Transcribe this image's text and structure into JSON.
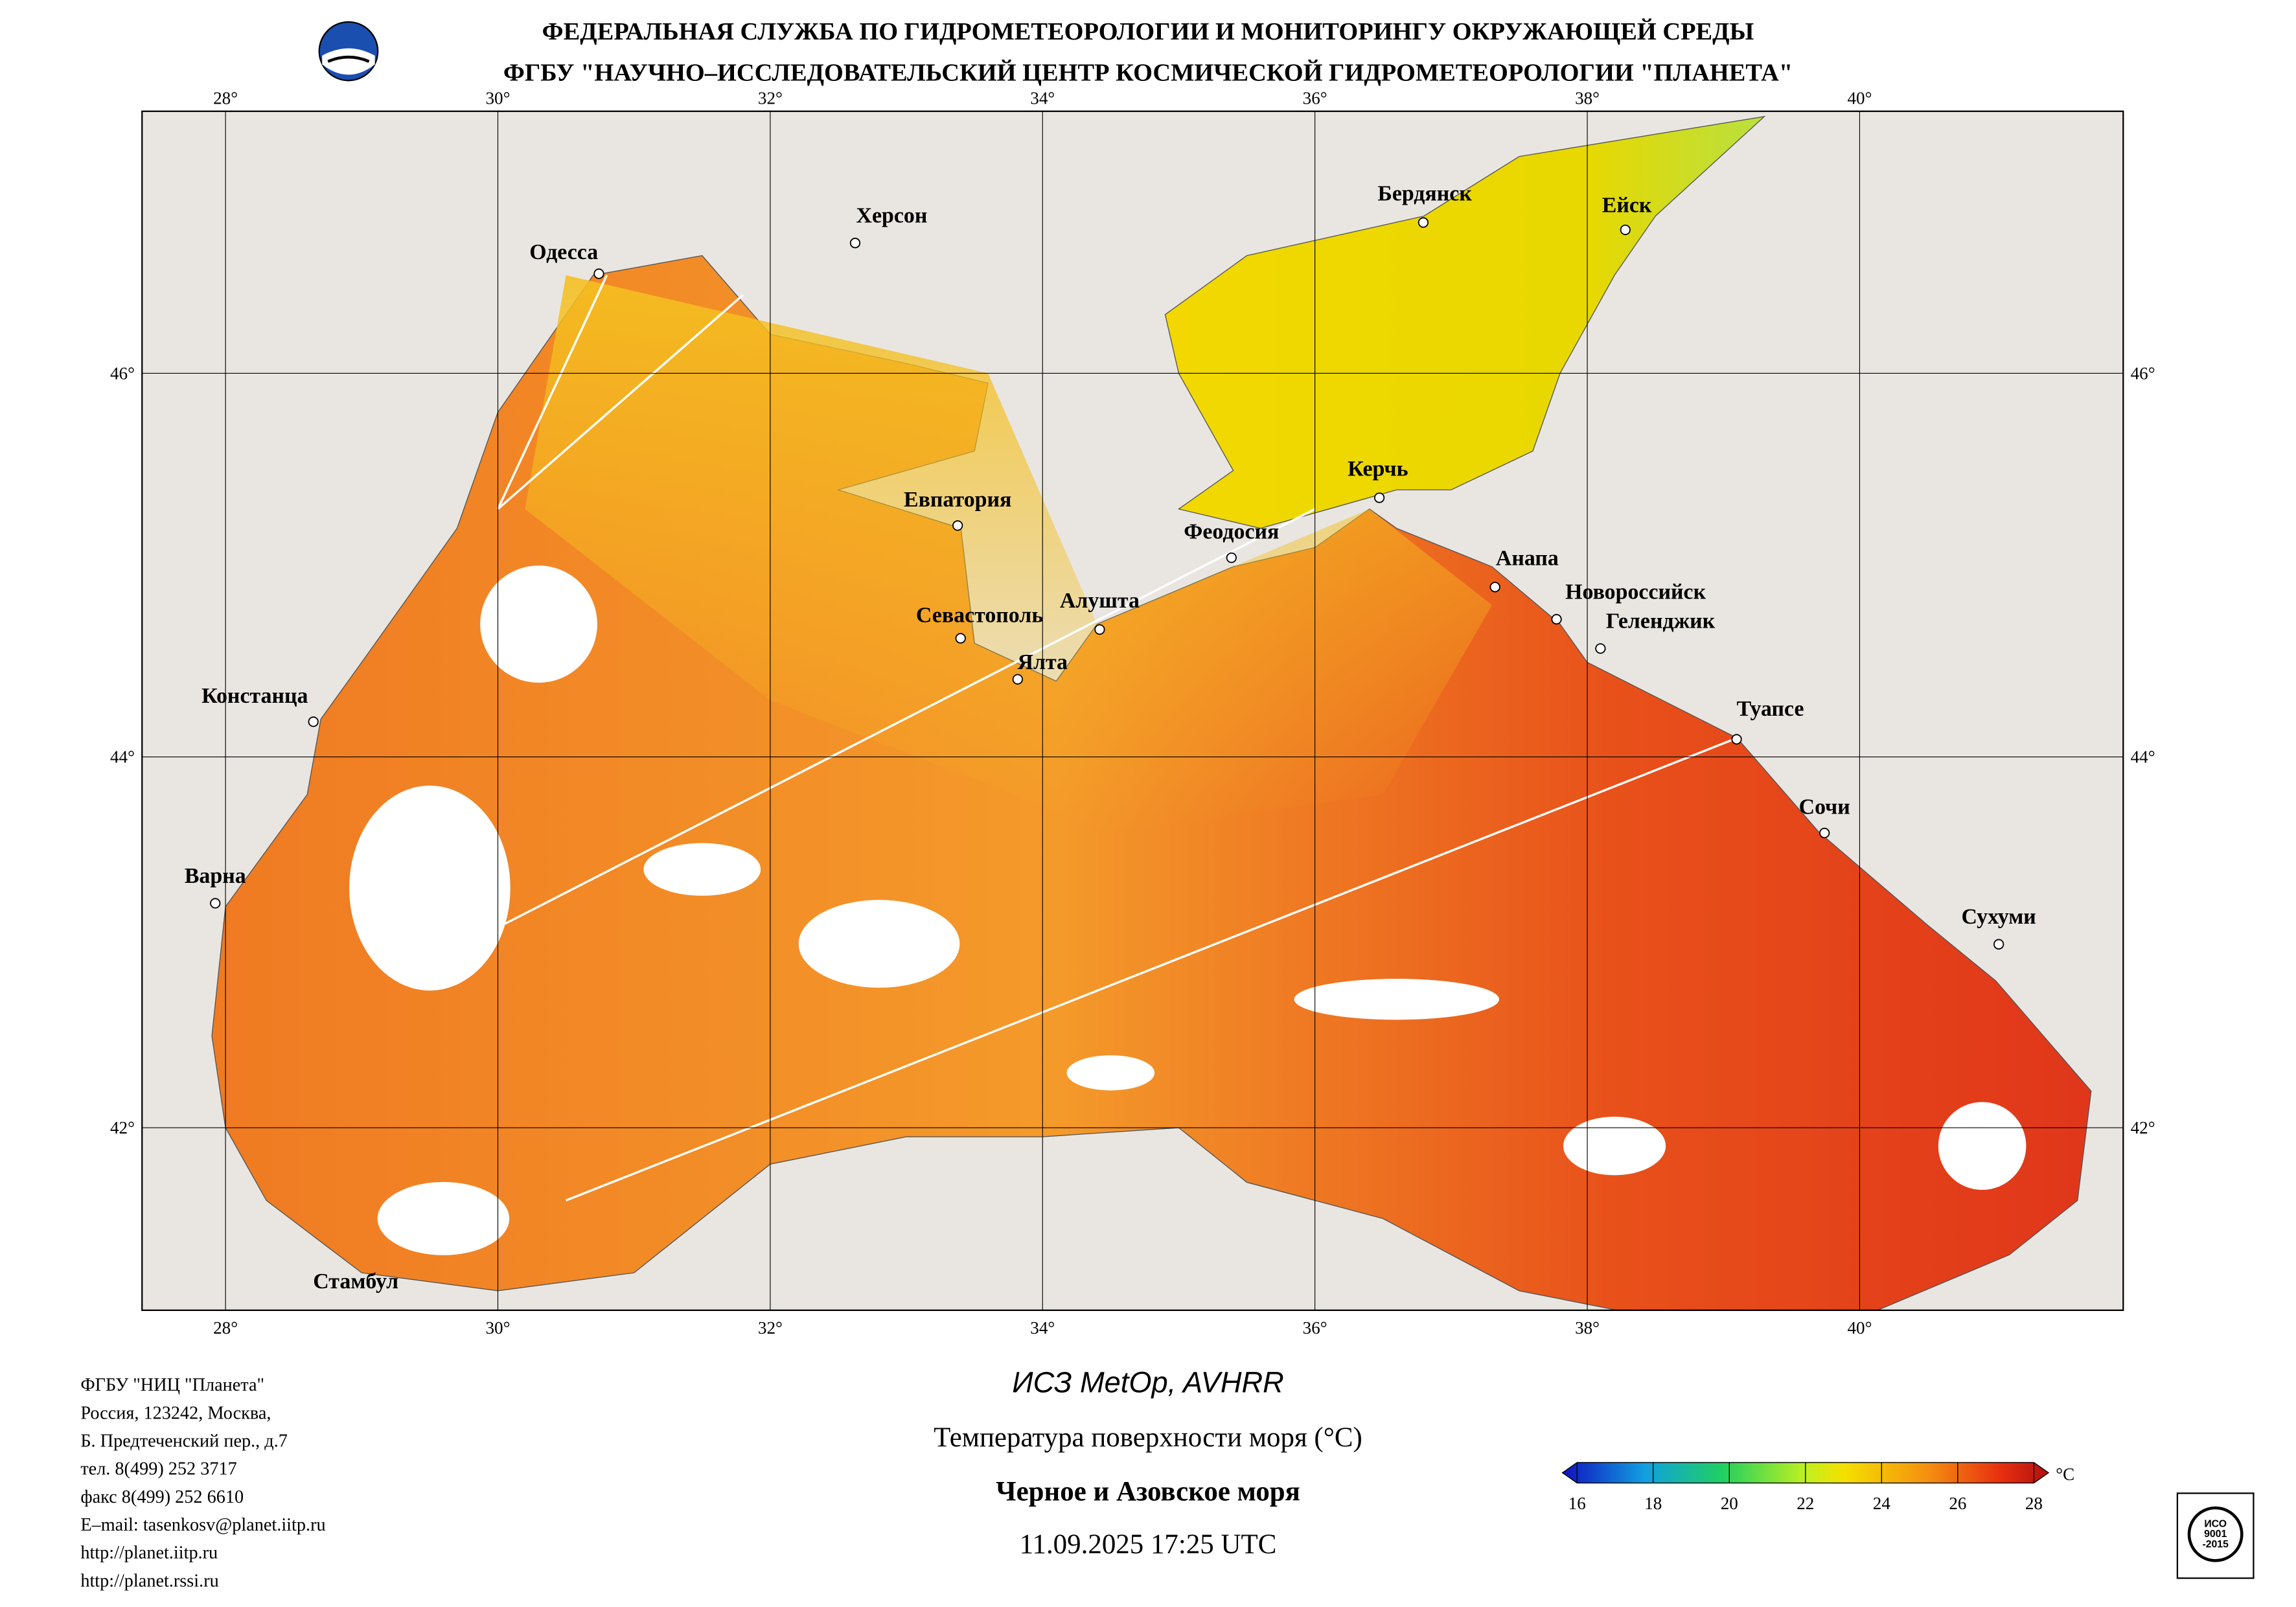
{
  "header": {
    "line1": "ФЕДЕРАЛЬНАЯ СЛУЖБА ПО ГИДРОМЕТЕОРОЛОГИИ И МОНИТОРИНГУ ОКРУЖАЮЩЕЙ СРЕДЫ",
    "line2": "ФГБУ \"НАУЧНО–ИССЛЕДОВАТЕЛЬСКИЙ ЦЕНТР КОСМИЧЕСКОЙ ГИДРОМЕТЕОРОЛОГИИ \"ПЛАНЕТА\""
  },
  "map": {
    "lon_ticks": [
      {
        "value": 28,
        "label": "28°"
      },
      {
        "value": 30,
        "label": "30°"
      },
      {
        "value": 32,
        "label": "32°"
      },
      {
        "value": 34,
        "label": "34°"
      },
      {
        "value": 36,
        "label": "36°"
      },
      {
        "value": 38,
        "label": "38°"
      },
      {
        "value": 40,
        "label": "40°"
      }
    ],
    "lat_ticks": [
      {
        "value": 46,
        "label": "46°"
      },
      {
        "value": 44,
        "label": "44°"
      },
      {
        "value": 42,
        "label": "42°"
      }
    ],
    "cities": [
      "Одесса",
      "Херсон",
      "Бердянск",
      "Ейск",
      "Евпатория",
      "Феодосия",
      "Керчь",
      "Анапа",
      "Новороссийск",
      "Геленджик",
      "Севастополь",
      "Алушта",
      "Ялта",
      "Констанца",
      "Туапсе",
      "Сочи",
      "Варна",
      "Сухуми",
      "Стамбул"
    ]
  },
  "footer": {
    "contacts": [
      "ФГБУ \"НИЦ \"Планета\"",
      "Россия, 123242, Москва,",
      "Б. Предтеченский пер., д.7",
      "тел. 8(499) 252 3717",
      "факс 8(499) 252 6610",
      "E–mail: tasenkosv@planet.iitp.ru",
      "http://planet.iitp.ru",
      "http://planet.rssi.ru"
    ],
    "satellite": "ИСЗ MetOp, AVHRR",
    "product": "Температура поверхности моря (°C)",
    "region": "Черное и Азовское моря",
    "datetime": "11.09.2025 17:25 UTC"
  },
  "colorbar": {
    "ticks": [
      16,
      18,
      20,
      22,
      24,
      26,
      28
    ],
    "unit": "°C"
  },
  "badge": {
    "lines": [
      "ИСО",
      "9001",
      "-2015"
    ]
  }
}
